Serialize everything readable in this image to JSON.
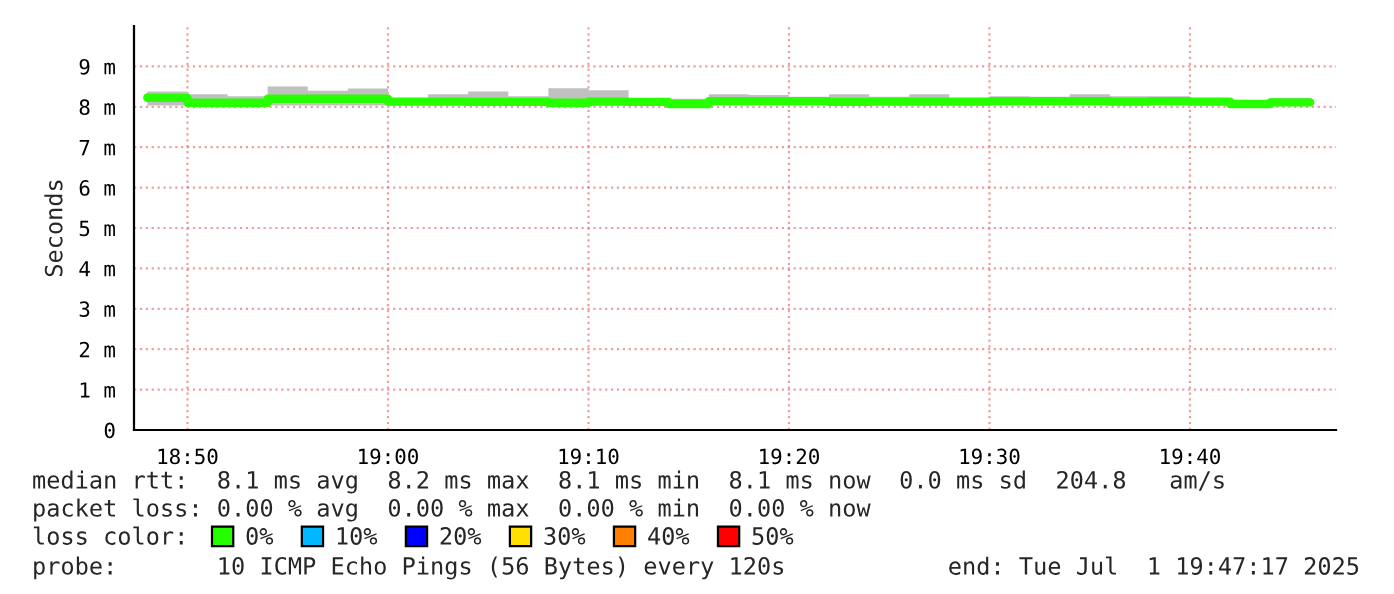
{
  "chart_data": {
    "type": "step",
    "ylabel": "Seconds",
    "x": [
      "2025-07-01T18:48",
      "2025-07-01T18:50",
      "2025-07-01T18:52",
      "2025-07-01T18:54",
      "2025-07-01T18:56",
      "2025-07-01T18:58",
      "2025-07-01T19:00",
      "2025-07-01T19:02",
      "2025-07-01T19:04",
      "2025-07-01T19:06",
      "2025-07-01T19:08",
      "2025-07-01T19:10",
      "2025-07-01T19:12",
      "2025-07-01T19:14",
      "2025-07-01T19:16",
      "2025-07-01T19:18",
      "2025-07-01T19:20",
      "2025-07-01T19:22",
      "2025-07-01T19:24",
      "2025-07-01T19:26",
      "2025-07-01T19:28",
      "2025-07-01T19:30",
      "2025-07-01T19:32",
      "2025-07-01T19:34",
      "2025-07-01T19:36",
      "2025-07-01T19:38",
      "2025-07-01T19:40",
      "2025-07-01T19:42",
      "2025-07-01T19:44",
      "2025-07-01T19:46"
    ],
    "series": [
      {
        "name": "0%",
        "color": "#26ff00",
        "values": [
          8.23,
          8.22,
          8.1,
          8.1,
          8.2,
          8.2,
          8.2,
          8.13,
          8.13,
          8.12,
          8.12,
          8.1,
          8.13,
          8.12,
          8.07,
          8.14,
          8.14,
          8.14,
          8.12,
          8.13,
          8.13,
          8.13,
          8.14,
          8.14,
          8.14,
          8.13,
          8.14,
          8.13,
          8.07,
          8.11
        ],
        "lower": [
          8.03,
          8.03,
          8.02,
          8.02,
          8.03,
          8.03,
          8.03,
          8.03,
          8.03,
          8.03,
          8.03,
          8.02,
          8.03,
          8.03,
          8.02,
          8.03,
          8.03,
          8.03,
          8.03,
          8.03,
          8.03,
          8.03,
          8.03,
          8.03,
          8.03,
          8.03,
          8.03,
          8.03,
          8.02,
          8.03
        ],
        "upper": [
          8.31,
          8.38,
          8.31,
          8.26,
          8.5,
          8.4,
          8.45,
          8.15,
          8.31,
          8.38,
          8.26,
          8.46,
          8.41,
          8.17,
          8.2,
          8.31,
          8.29,
          8.25,
          8.31,
          8.25,
          8.31,
          8.19,
          8.26,
          8.25,
          8.31,
          8.26,
          8.26,
          8.19,
          8.12,
          8.21
        ]
      },
      {
        "name": "10%",
        "color": "#00b8ff",
        "values": [
          null,
          null,
          null,
          null,
          null,
          null,
          null,
          null,
          null,
          null,
          null,
          null,
          null,
          null,
          null,
          null,
          null,
          null,
          null,
          null,
          null,
          null,
          null,
          null,
          null,
          null,
          null,
          null,
          null,
          null
        ]
      },
      {
        "name": "20%",
        "color": "#0000ff",
        "values": [
          null,
          null,
          null,
          null,
          null,
          null,
          null,
          null,
          null,
          null,
          null,
          null,
          null,
          null,
          null,
          null,
          null,
          null,
          null,
          null,
          null,
          null,
          null,
          null,
          null,
          null,
          null,
          null,
          null,
          null
        ]
      },
      {
        "name": "30%",
        "color": "#ffe000",
        "values": [
          null,
          null,
          null,
          null,
          null,
          null,
          null,
          null,
          null,
          null,
          null,
          null,
          null,
          null,
          null,
          null,
          null,
          null,
          null,
          null,
          null,
          null,
          null,
          null,
          null,
          null,
          null,
          null,
          null,
          null
        ]
      },
      {
        "name": "40%",
        "color": "#ff8000",
        "values": [
          null,
          null,
          null,
          null,
          null,
          null,
          null,
          null,
          null,
          null,
          null,
          null,
          null,
          null,
          null,
          null,
          null,
          null,
          null,
          null,
          null,
          null,
          null,
          null,
          null,
          null,
          null,
          null,
          null,
          null
        ]
      },
      {
        "name": "50%",
        "color": "#ff0000",
        "values": [
          null,
          null,
          null,
          null,
          null,
          null,
          null,
          null,
          null,
          null,
          null,
          null,
          null,
          null,
          null,
          null,
          null,
          null,
          null,
          null,
          null,
          null,
          null,
          null,
          null,
          null,
          null,
          null,
          null,
          null
        ]
      }
    ],
    "xlim": [
      "2025-07-01T18:47:20",
      "2025-07-01T19:47:17"
    ],
    "xticks": [
      {
        "value": "2025-07-01T18:50",
        "label": "18:50"
      },
      {
        "value": "2025-07-01T19:00",
        "label": "19:00"
      },
      {
        "value": "2025-07-01T19:10",
        "label": "19:10"
      },
      {
        "value": "2025-07-01T19:20",
        "label": "19:20"
      },
      {
        "value": "2025-07-01T19:30",
        "label": "19:30"
      },
      {
        "value": "2025-07-01T19:40",
        "label": "19:40"
      }
    ],
    "ylim": [
      0,
      10
    ],
    "yticks": [
      0,
      {
        "value": 1,
        "label": "1 m"
      },
      {
        "value": 2,
        "label": "2 m"
      },
      {
        "value": 3,
        "label": "3 m"
      },
      {
        "value": 4,
        "label": "4 m"
      },
      {
        "value": 5,
        "label": "5 m"
      },
      {
        "value": 6,
        "label": "6 m"
      },
      {
        "value": 7,
        "label": "7 m"
      },
      {
        "value": 8,
        "label": "8 m"
      },
      {
        "value": 9,
        "label": "9 m"
      }
    ],
    "grid": true,
    "legend": "bottom",
    "legend_title": "loss color:",
    "line_style": "solid",
    "marker": "none",
    "annotations": [
      "median rtt:  8.1 ms avg  8.2 ms max  8.1 ms min  8.1 ms now  0.0 ms sd  204.8   am/s",
      "packet loss: 0.00 % avg  0.00 % max  0.00 % min  0.00 % now",
      "probe:       10 ICMP Echo Pings (56 Bytes) every 120s",
      "end: Tue Jul  1 19:47:17 2025"
    ]
  }
}
